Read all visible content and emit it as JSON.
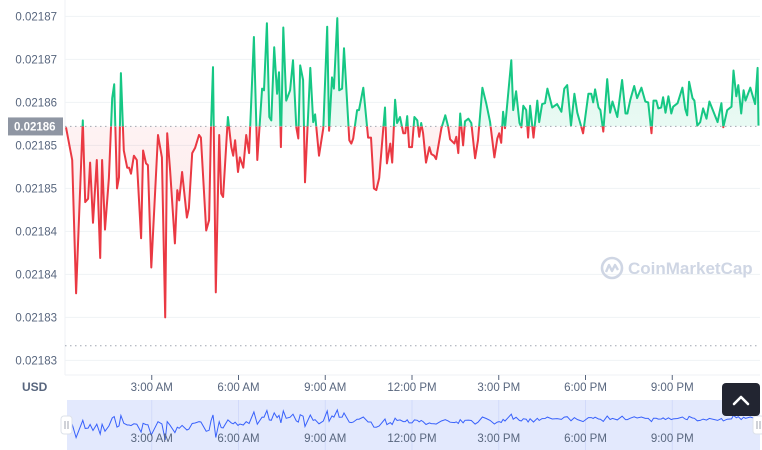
{
  "chart_data": {
    "type": "line",
    "title": "",
    "xlabel": "",
    "ylabel": "",
    "unit_label": "USD",
    "current_price_label": "0.02186",
    "baseline_value": 0.0218572,
    "low_reference_value": 0.0218317,
    "ylim": [
      0.0218283,
      0.0218719
    ],
    "xlim": [
      "0:00",
      "24:00"
    ],
    "grid": true,
    "y_ticks": [
      {
        "value": 0.02187,
        "label": "0.02187"
      },
      {
        "value": 0.021865,
        "label": "0.02187"
      },
      {
        "value": 0.02186,
        "label": "0.02186"
      },
      {
        "value": 0.021855,
        "label": "0.02185"
      },
      {
        "value": 0.02185,
        "label": "0.02185"
      },
      {
        "value": 0.021845,
        "label": "0.02184"
      },
      {
        "value": 0.02184,
        "label": "0.02184"
      },
      {
        "value": 0.021835,
        "label": "0.02183"
      },
      {
        "value": 0.02183,
        "label": "0.02183"
      }
    ],
    "x_ticks": [
      {
        "time": "3:00",
        "label": "3:00 AM"
      },
      {
        "time": "6:00",
        "label": "6:00 AM"
      },
      {
        "time": "9:00",
        "label": "9:00 AM"
      },
      {
        "time": "12:00",
        "label": "12:00 PM"
      },
      {
        "time": "15:00",
        "label": "3:00 PM"
      },
      {
        "time": "18:00",
        "label": "6:00 PM"
      },
      {
        "time": "21:00",
        "label": "9:00 PM"
      }
    ],
    "colors": {
      "above": "#16c784",
      "below": "#ea3943",
      "navigator_line": "#3861fb",
      "navigator_bg": "#e3e9fd"
    },
    "watermark": "CoinMarketCap",
    "points": [
      [
        "0:02",
        0.0218571
      ],
      [
        "0:15",
        0.0218533
      ],
      [
        "0:23",
        0.0218378
      ],
      [
        "0:37",
        0.0218579
      ],
      [
        "0:42",
        0.0218484
      ],
      [
        "0:48",
        0.0218488
      ],
      [
        "0:52",
        0.021853
      ],
      [
        "0:58",
        0.021846
      ],
      [
        "1:06",
        0.0218533
      ],
      [
        "1:13",
        0.0218419
      ],
      [
        "1:17",
        0.0218533
      ],
      [
        "1:23",
        0.0218452
      ],
      [
        "1:31",
        0.0218512
      ],
      [
        "1:38",
        0.0218605
      ],
      [
        "1:42",
        0.0218621
      ],
      [
        "1:48",
        0.02185
      ],
      [
        "1:52",
        0.0218513
      ],
      [
        "1:56",
        0.0218634
      ],
      [
        "2:02",
        0.0218544
      ],
      [
        "2:09",
        0.0218524
      ],
      [
        "2:13",
        0.0218524
      ],
      [
        "2:17",
        0.0218517
      ],
      [
        "2:23",
        0.0218538
      ],
      [
        "2:29",
        0.0218533
      ],
      [
        "2:38",
        0.0218442
      ],
      [
        "2:42",
        0.0218544
      ],
      [
        "2:48",
        0.0218529
      ],
      [
        "2:52",
        0.0218527
      ],
      [
        "2:59",
        0.0218408
      ],
      [
        "3:13",
        0.0218562
      ],
      [
        "3:21",
        0.0218536
      ],
      [
        "3:28",
        0.021835
      ],
      [
        "3:32",
        0.0218564
      ],
      [
        "3:38",
        0.0218521
      ],
      [
        "3:48",
        0.0218436
      ],
      [
        "3:53",
        0.0218498
      ],
      [
        "3:57",
        0.0218486
      ],
      [
        "4:03",
        0.0218519
      ],
      [
        "4:13",
        0.0218466
      ],
      [
        "4:17",
        0.0218477
      ],
      [
        "4:24",
        0.0218541
      ],
      [
        "4:30",
        0.0218547
      ],
      [
        "4:38",
        0.0218562
      ],
      [
        "4:42",
        0.0218559
      ],
      [
        "4:53",
        0.0218451
      ],
      [
        "4:59",
        0.0218463
      ],
      [
        "5:03",
        0.0218571
      ],
      [
        "5:07",
        0.0218641
      ],
      [
        "5:13",
        0.0218379
      ],
      [
        "5:20",
        0.0218562
      ],
      [
        "5:24",
        0.0218494
      ],
      [
        "5:28",
        0.021849
      ],
      [
        "5:38",
        0.0218583
      ],
      [
        "5:45",
        0.0218548
      ],
      [
        "5:49",
        0.0218538
      ],
      [
        "5:53",
        0.0218556
      ],
      [
        "5:59",
        0.0218519
      ],
      [
        "6:03",
        0.0218536
      ],
      [
        "6:10",
        0.0218524
      ],
      [
        "6:16",
        0.0218562
      ],
      [
        "6:22",
        0.0218541
      ],
      [
        "6:32",
        0.0218676
      ],
      [
        "6:39",
        0.0218533
      ],
      [
        "6:49",
        0.0218616
      ],
      [
        "6:53",
        0.0218614
      ],
      [
        "6:59",
        0.0218692
      ],
      [
        "7:04",
        0.0218583
      ],
      [
        "7:08",
        0.0218579
      ],
      [
        "7:14",
        0.0218664
      ],
      [
        "7:20",
        0.021861
      ],
      [
        "7:24",
        0.0218635
      ],
      [
        "7:28",
        0.0218548
      ],
      [
        "7:33",
        0.0218687
      ],
      [
        "7:39",
        0.0218602
      ],
      [
        "7:47",
        0.0218614
      ],
      [
        "7:53",
        0.0218649
      ],
      [
        "8:00",
        0.0218571
      ],
      [
        "8:04",
        0.0218558
      ],
      [
        "8:08",
        0.0218643
      ],
      [
        "8:14",
        0.0218626
      ],
      [
        "8:18",
        0.0218507
      ],
      [
        "8:29",
        0.021864
      ],
      [
        "8:35",
        0.0218577
      ],
      [
        "8:39",
        0.0218586
      ],
      [
        "8:47",
        0.0218538
      ],
      [
        "8:56",
        0.021857
      ],
      [
        "9:04",
        0.0218688
      ],
      [
        "9:08",
        0.0218567
      ],
      [
        "9:14",
        0.0218629
      ],
      [
        "9:18",
        0.0218616
      ],
      [
        "9:25",
        0.0218698
      ],
      [
        "9:29",
        0.0218614
      ],
      [
        "9:35",
        0.0218616
      ],
      [
        "9:39",
        0.0218663
      ],
      [
        "9:50",
        0.0218556
      ],
      [
        "9:54",
        0.0218552
      ],
      [
        "9:58",
        0.0218558
      ],
      [
        "10:06",
        0.0218591
      ],
      [
        "10:10",
        0.0218591
      ],
      [
        "10:19",
        0.0218617
      ],
      [
        "10:29",
        0.0218559
      ],
      [
        "10:35",
        0.0218559
      ],
      [
        "10:41",
        0.02185
      ],
      [
        "10:46",
        0.0218498
      ],
      [
        "10:52",
        0.0218512
      ],
      [
        "11:04",
        0.0218594
      ],
      [
        "11:08",
        0.0218529
      ],
      [
        "11:15",
        0.0218552
      ],
      [
        "11:19",
        0.021853
      ],
      [
        "11:25",
        0.0218603
      ],
      [
        "11:29",
        0.0218576
      ],
      [
        "11:35",
        0.0218583
      ],
      [
        "11:42",
        0.0218564
      ],
      [
        "11:46",
        0.0218564
      ],
      [
        "11:50",
        0.0218584
      ],
      [
        "11:54",
        0.0218548
      ],
      [
        "12:00",
        0.0218548
      ],
      [
        "12:05",
        0.0218583
      ],
      [
        "12:11",
        0.0218579
      ],
      [
        "12:15",
        0.021856
      ],
      [
        "12:19",
        0.0218576
      ],
      [
        "12:23",
        0.0218564
      ],
      [
        "12:29",
        0.021853
      ],
      [
        "12:36",
        0.0218548
      ],
      [
        "12:40",
        0.021854
      ],
      [
        "12:46",
        0.0218538
      ],
      [
        "12:50",
        0.0218534
      ],
      [
        "13:01",
        0.021857
      ],
      [
        "13:09",
        0.0218585
      ],
      [
        "13:15",
        0.0218572
      ],
      [
        "13:19",
        0.0218557
      ],
      [
        "13:28",
        0.0218552
      ],
      [
        "13:32",
        0.021856
      ],
      [
        "13:36",
        0.0218541
      ],
      [
        "13:40",
        0.0218587
      ],
      [
        "13:46",
        0.021855
      ],
      [
        "13:50",
        0.0218578
      ],
      [
        "13:57",
        0.0218581
      ],
      [
        "14:03",
        0.0218576
      ],
      [
        "14:11",
        0.0218535
      ],
      [
        "14:17",
        0.0218556
      ],
      [
        "14:26",
        0.0218617
      ],
      [
        "14:34",
        0.0218599
      ],
      [
        "14:42",
        0.0218577
      ],
      [
        "14:51",
        0.0218536
      ],
      [
        "14:57",
        0.0218558
      ],
      [
        "15:01",
        0.0218564
      ],
      [
        "15:05",
        0.0218553
      ],
      [
        "15:09",
        0.0218589
      ],
      [
        "15:13",
        0.021857
      ],
      [
        "15:26",
        0.0218649
      ],
      [
        "15:30",
        0.0218591
      ],
      [
        "15:36",
        0.0218613
      ],
      [
        "15:43",
        0.0218576
      ],
      [
        "15:47",
        0.0218571
      ],
      [
        "15:51",
        0.0218596
      ],
      [
        "15:57",
        0.0218591
      ],
      [
        "16:01",
        0.0218559
      ],
      [
        "16:05",
        0.0218596
      ],
      [
        "16:12",
        0.0218559
      ],
      [
        "16:20",
        0.0218602
      ],
      [
        "16:24",
        0.0218577
      ],
      [
        "16:30",
        0.0218598
      ],
      [
        "16:36",
        0.0218599
      ],
      [
        "16:41",
        0.0218616
      ],
      [
        "16:51",
        0.0218594
      ],
      [
        "17:01",
        0.0218598
      ],
      [
        "17:10",
        0.0218589
      ],
      [
        "17:16",
        0.0218616
      ],
      [
        "17:22",
        0.021862
      ],
      [
        "17:30",
        0.0218573
      ],
      [
        "17:37",
        0.021861
      ],
      [
        "17:43",
        0.0218588
      ],
      [
        "17:55",
        0.0218564
      ],
      [
        "18:06",
        0.021861
      ],
      [
        "18:12",
        0.021861
      ],
      [
        "18:16",
        0.02186
      ],
      [
        "18:20",
        0.0218615
      ],
      [
        "18:27",
        0.0218594
      ],
      [
        "18:31",
        0.0218591
      ],
      [
        "18:37",
        0.0218566
      ],
      [
        "18:45",
        0.0218627
      ],
      [
        "18:51",
        0.0218588
      ],
      [
        "18:56",
        0.0218601
      ],
      [
        "19:06",
        0.0218583
      ],
      [
        "19:16",
        0.0218626
      ],
      [
        "19:23",
        0.0218587
      ],
      [
        "19:27",
        0.0218587
      ],
      [
        "19:33",
        0.0218603
      ],
      [
        "19:41",
        0.0218619
      ],
      [
        "19:47",
        0.0218605
      ],
      [
        "19:56",
        0.0218617
      ],
      [
        "20:04",
        0.0218601
      ],
      [
        "20:10",
        0.02186
      ],
      [
        "20:17",
        0.0218564
      ],
      [
        "20:21",
        0.0218602
      ],
      [
        "20:27",
        0.0218602
      ],
      [
        "20:31",
        0.0218593
      ],
      [
        "20:37",
        0.0218594
      ],
      [
        "20:41",
        0.0218606
      ],
      [
        "20:46",
        0.0218588
      ],
      [
        "20:52",
        0.0218607
      ],
      [
        "20:58",
        0.0218587
      ],
      [
        "21:02",
        0.0218595
      ],
      [
        "21:11",
        0.0218599
      ],
      [
        "21:21",
        0.0218617
      ],
      [
        "21:27",
        0.0218592
      ],
      [
        "21:31",
        0.0218585
      ],
      [
        "21:35",
        0.0218624
      ],
      [
        "21:42",
        0.0218605
      ],
      [
        "21:46",
        0.0218602
      ],
      [
        "21:52",
        0.0218573
      ],
      [
        "21:58",
        0.0218577
      ],
      [
        "22:04",
        0.0218593
      ],
      [
        "22:11",
        0.0218581
      ],
      [
        "22:17",
        0.0218601
      ],
      [
        "22:34",
        0.0218577
      ],
      [
        "22:42",
        0.0218599
      ],
      [
        "22:46",
        0.0218571
      ],
      [
        "22:54",
        0.0218591
      ],
      [
        "23:03",
        0.0218595
      ],
      [
        "23:07",
        0.0218637
      ],
      [
        "23:13",
        0.0218607
      ],
      [
        "23:17",
        0.021862
      ],
      [
        "23:23",
        0.0218587
      ],
      [
        "23:28",
        0.0218614
      ],
      [
        "23:32",
        0.0218602
      ],
      [
        "23:42",
        0.0218617
      ],
      [
        "23:52",
        0.0218598
      ],
      [
        "23:57",
        0.021864
      ],
      [
        "23:59",
        0.0218573
      ]
    ]
  },
  "controls": {
    "scroll_top_icon": "chevron-up-icon"
  }
}
